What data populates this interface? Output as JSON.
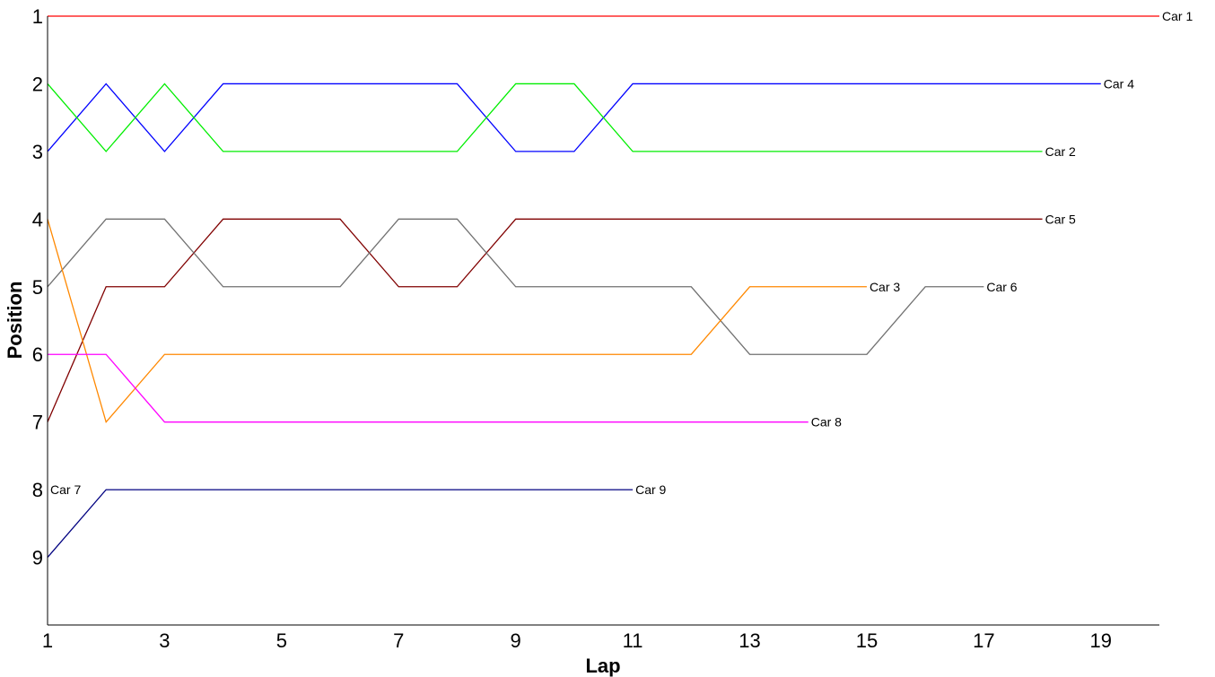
{
  "chart_data": {
    "type": "line",
    "title": "",
    "xlabel": "Lap",
    "ylabel": "Position",
    "xlim": [
      1,
      20
    ],
    "ylim": [
      1,
      10
    ],
    "y_inverted": true,
    "grid": false,
    "legend": "none (series labelled at line ends)",
    "x_ticks": [
      "1",
      "3",
      "5",
      "7",
      "9",
      "11",
      "13",
      "15",
      "17",
      "19"
    ],
    "y_ticks": [
      "1",
      "2",
      "3",
      "4",
      "5",
      "6",
      "7",
      "8",
      "9"
    ],
    "series": [
      {
        "name": "Car 1",
        "color": "#ff0000",
        "x": [
          1,
          2,
          3,
          4,
          5,
          6,
          7,
          8,
          9,
          10,
          11,
          12,
          13,
          14,
          15,
          16,
          17,
          18,
          19,
          20
        ],
        "y": [
          1,
          1,
          1,
          1,
          1,
          1,
          1,
          1,
          1,
          1,
          1,
          1,
          1,
          1,
          1,
          1,
          1,
          1,
          1,
          1
        ],
        "label_at": "end"
      },
      {
        "name": "Car 4",
        "color": "#0000ff",
        "x": [
          1,
          2,
          3,
          4,
          5,
          6,
          7,
          8,
          9,
          10,
          11,
          12,
          13,
          14,
          15,
          16,
          17,
          18,
          19
        ],
        "y": [
          3,
          2,
          3,
          2,
          2,
          2,
          2,
          2,
          3,
          3,
          2,
          2,
          2,
          2,
          2,
          2,
          2,
          2,
          2
        ],
        "label_at": "end"
      },
      {
        "name": "Car 2",
        "color": "#00ee00",
        "x": [
          1,
          2,
          3,
          4,
          5,
          6,
          7,
          8,
          9,
          10,
          11,
          12,
          13,
          14,
          15,
          16,
          17,
          18
        ],
        "y": [
          2,
          3,
          2,
          3,
          3,
          3,
          3,
          3,
          2,
          2,
          3,
          3,
          3,
          3,
          3,
          3,
          3,
          3
        ],
        "label_at": "end"
      },
      {
        "name": "Car 5",
        "color": "#800000",
        "x": [
          1,
          2,
          3,
          4,
          5,
          6,
          7,
          8,
          9,
          10,
          11,
          12,
          13,
          14,
          15,
          16,
          17,
          18
        ],
        "y": [
          7,
          5,
          5,
          4,
          4,
          4,
          5,
          5,
          4,
          4,
          4,
          4,
          4,
          4,
          4,
          4,
          4,
          4
        ],
        "label_at": "end"
      },
      {
        "name": "Car 6",
        "color": "#707070",
        "x": [
          1,
          2,
          3,
          4,
          5,
          6,
          7,
          8,
          9,
          10,
          11,
          12,
          13,
          14,
          15,
          16,
          17
        ],
        "y": [
          5,
          4,
          4,
          5,
          5,
          5,
          4,
          4,
          5,
          5,
          5,
          5,
          6,
          6,
          6,
          5,
          5
        ],
        "label_at": "end"
      },
      {
        "name": "Car 3",
        "color": "#ff8800",
        "x": [
          1,
          2,
          3,
          4,
          5,
          6,
          7,
          8,
          9,
          10,
          11,
          12,
          13,
          14,
          15
        ],
        "y": [
          4,
          7,
          6,
          6,
          6,
          6,
          6,
          6,
          6,
          6,
          6,
          6,
          5,
          5,
          5
        ],
        "label_at": "end"
      },
      {
        "name": "Car 8",
        "color": "#ff00ff",
        "x": [
          1,
          2,
          3,
          4,
          5,
          6,
          7,
          8,
          9,
          10,
          11,
          12,
          13,
          14
        ],
        "y": [
          6,
          6,
          7,
          7,
          7,
          7,
          7,
          7,
          7,
          7,
          7,
          7,
          7,
          7
        ],
        "label_at": "end"
      },
      {
        "name": "Car 9",
        "color": "#000080",
        "x": [
          1,
          2,
          3,
          4,
          5,
          6,
          7,
          8,
          9,
          10,
          11
        ],
        "y": [
          9,
          8,
          8,
          8,
          8,
          8,
          8,
          8,
          8,
          8,
          8
        ],
        "label_at": "end"
      },
      {
        "name": "Car 7",
        "color": "#000000",
        "x": [
          1
        ],
        "y": [
          8
        ],
        "label_at": "start"
      }
    ]
  }
}
